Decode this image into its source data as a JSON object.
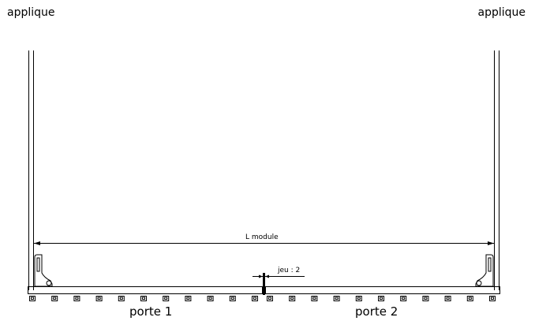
{
  "labels": {
    "applique_left": "applique",
    "applique_right": "applique",
    "dimension": "L module",
    "gap": "jeu : 2",
    "door_left": "porte 1",
    "door_right": "porte 2"
  },
  "colors": {
    "line": "#000000",
    "background": "#ffffff"
  }
}
